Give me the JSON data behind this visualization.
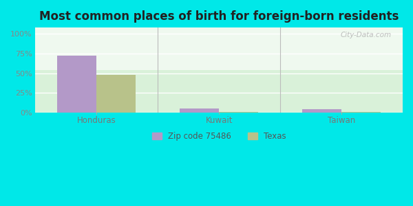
{
  "title": "Most common places of birth for foreign-born residents",
  "categories": [
    "Honduras",
    "Kuwait",
    "Taiwan"
  ],
  "zip_values": [
    72.5,
    5.0,
    4.0
  ],
  "texas_values": [
    48.0,
    0.5,
    1.0
  ],
  "zip_color": "#b399c8",
  "texas_color": "#b8c28a",
  "zip_label": "Zip code 75486",
  "texas_label": "Texas",
  "yticks": [
    0,
    25,
    50,
    75,
    100
  ],
  "ytick_labels": [
    "0%",
    "25%",
    "50%",
    "75%",
    "100%"
  ],
  "ylim": [
    0,
    108
  ],
  "outer_bg": "#00e8e8",
  "title_fontsize": 12,
  "bar_width": 0.32
}
